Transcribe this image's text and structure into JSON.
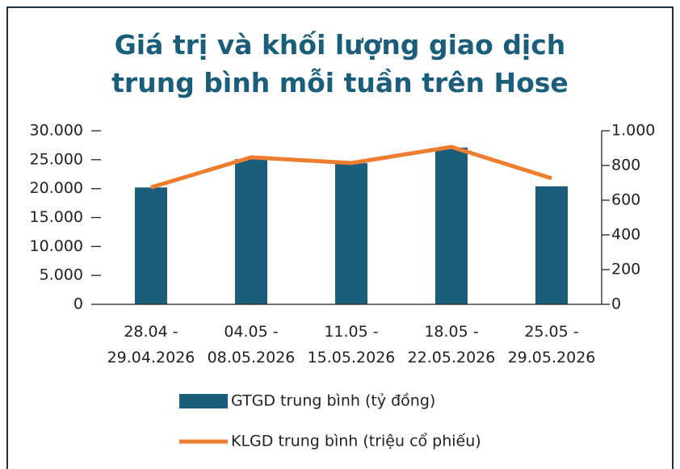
{
  "chart_data": {
    "type": "bar",
    "title": "Giá trị và khối lượng giao dịch\ntrung bình mỗi tuần trên Hose",
    "categories": [
      "28.04 -\n29.04.2026",
      "04.05 -\n08.05.2026",
      "11.05 -\n15.05.2026",
      "18.05 -\n22.05.2026",
      "25.05 -\n29.05.2026"
    ],
    "series": [
      {
        "name": "GTGD trung bình (tỷ đồng)",
        "type": "bar",
        "color": "#1b5e7b",
        "values": [
          20200,
          25100,
          24400,
          27100,
          20400
        ]
      },
      {
        "name": "KLGD trung bình (triệu cổ phiếu)",
        "type": "line",
        "axis": "y2",
        "color": "#ed7d31",
        "values": [
          674,
          847,
          814,
          907,
          726
        ]
      }
    ],
    "ylim": [
      0,
      30000
    ],
    "yticks": [
      0,
      {
        "value": 5000,
        "label": "5.000"
      },
      {
        "value": 10000,
        "label": "10.000"
      },
      {
        "value": 15000,
        "label": "15.000"
      },
      {
        "value": 20000,
        "label": "20.000"
      },
      {
        "value": 25000,
        "label": "25.000"
      },
      {
        "value": 30000,
        "label": "30.000"
      }
    ],
    "y2lim": [
      0,
      1000
    ],
    "y2ticks": [
      0,
      200,
      400,
      600,
      800,
      {
        "value": 1000,
        "label": "1.000"
      }
    ],
    "legend": "bottom"
  }
}
